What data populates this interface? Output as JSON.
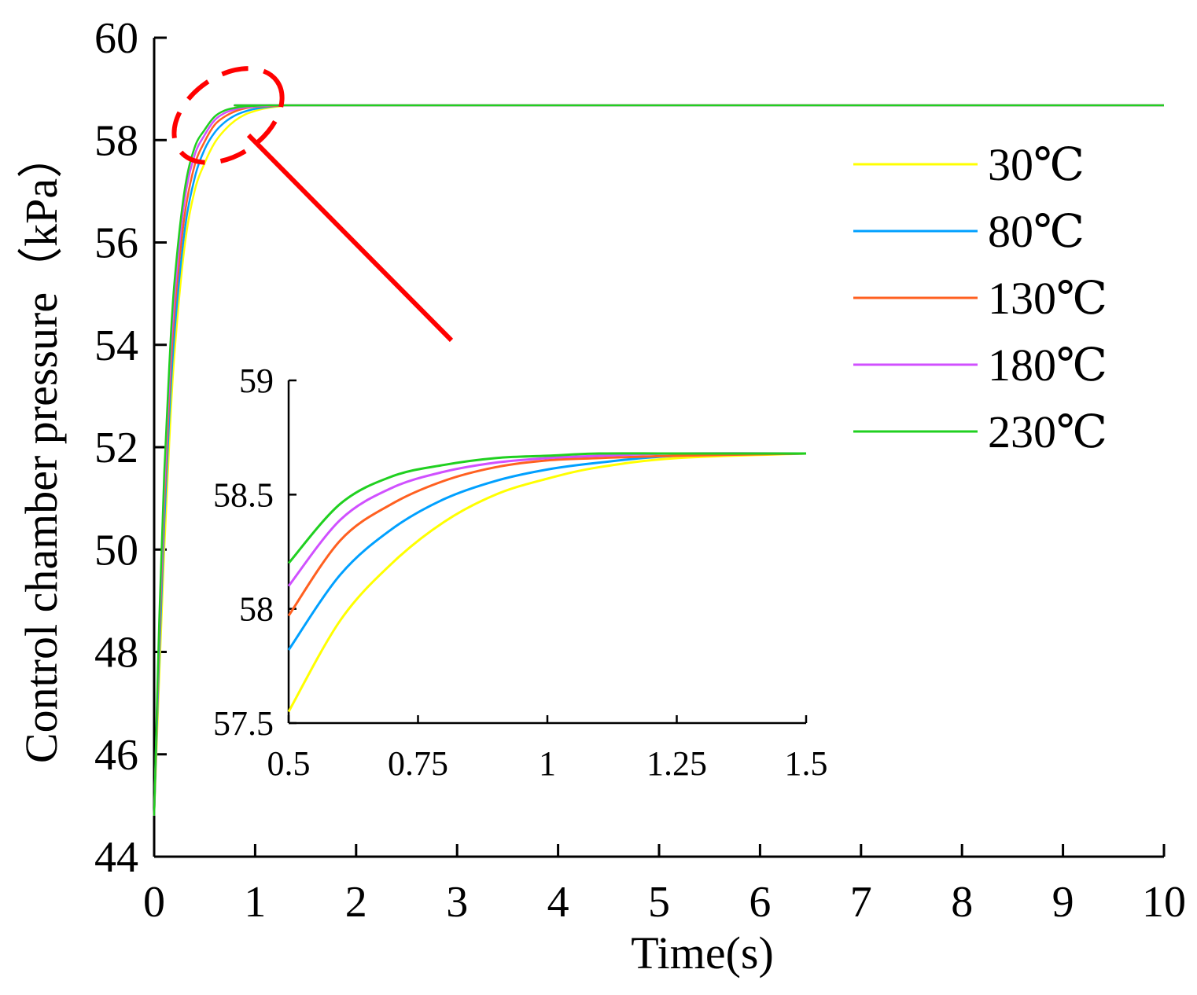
{
  "chart_data": {
    "type": "line",
    "title": "",
    "xlabel": "Time(s)",
    "ylabel": "Control chamber pressure（kPa）",
    "xlim": [
      0,
      10
    ],
    "ylim": [
      44,
      60
    ],
    "xticks": [
      "0",
      "1",
      "2",
      "3",
      "4",
      "5",
      "6",
      "7",
      "8",
      "9",
      "10"
    ],
    "yticks": [
      "44",
      "46",
      "48",
      "50",
      "52",
      "54",
      "56",
      "58",
      "60"
    ],
    "legend_position": "top-right",
    "steady_state": 58.68,
    "series": [
      {
        "name": "30℃",
        "color": "#ffff00",
        "points": [
          [
            0,
            44.8
          ],
          [
            0.05,
            47.5
          ],
          [
            0.1,
            50.0
          ],
          [
            0.15,
            52.1
          ],
          [
            0.2,
            53.8
          ],
          [
            0.3,
            55.9
          ],
          [
            0.4,
            57.0
          ],
          [
            0.5,
            57.55
          ],
          [
            0.6,
            57.95
          ],
          [
            0.7,
            58.2
          ],
          [
            0.8,
            58.38
          ],
          [
            0.9,
            58.5
          ],
          [
            1.0,
            58.57
          ],
          [
            1.1,
            58.62
          ],
          [
            1.25,
            58.66
          ],
          [
            1.5,
            58.68
          ],
          [
            10,
            58.68
          ]
        ]
      },
      {
        "name": "80℃",
        "color": "#00a0ff",
        "points": [
          [
            0,
            44.8
          ],
          [
            0.05,
            47.9
          ],
          [
            0.1,
            50.5
          ],
          [
            0.15,
            52.6
          ],
          [
            0.2,
            54.2
          ],
          [
            0.3,
            56.2
          ],
          [
            0.4,
            57.25
          ],
          [
            0.5,
            57.82
          ],
          [
            0.6,
            58.15
          ],
          [
            0.7,
            58.35
          ],
          [
            0.8,
            58.48
          ],
          [
            0.9,
            58.56
          ],
          [
            1.0,
            58.61
          ],
          [
            1.1,
            58.64
          ],
          [
            1.25,
            58.67
          ],
          [
            1.5,
            58.68
          ],
          [
            10,
            58.68
          ]
        ]
      },
      {
        "name": "130℃",
        "color": "#ff6020",
        "points": [
          [
            0,
            44.8
          ],
          [
            0.05,
            48.2
          ],
          [
            0.1,
            50.9
          ],
          [
            0.15,
            53.0
          ],
          [
            0.2,
            54.6
          ],
          [
            0.3,
            56.5
          ],
          [
            0.4,
            57.5
          ],
          [
            0.5,
            57.97
          ],
          [
            0.6,
            58.3
          ],
          [
            0.7,
            58.46
          ],
          [
            0.8,
            58.56
          ],
          [
            0.9,
            58.62
          ],
          [
            1.0,
            58.65
          ],
          [
            1.1,
            58.66
          ],
          [
            1.25,
            58.67
          ],
          [
            1.5,
            58.68
          ],
          [
            10,
            58.68
          ]
        ]
      },
      {
        "name": "180℃",
        "color": "#d050ff",
        "points": [
          [
            0,
            44.8
          ],
          [
            0.05,
            48.4
          ],
          [
            0.1,
            51.2
          ],
          [
            0.15,
            53.3
          ],
          [
            0.2,
            54.9
          ],
          [
            0.3,
            56.8
          ],
          [
            0.4,
            57.7
          ],
          [
            0.5,
            58.1
          ],
          [
            0.6,
            58.39
          ],
          [
            0.7,
            58.53
          ],
          [
            0.8,
            58.6
          ],
          [
            0.9,
            58.64
          ],
          [
            1.0,
            58.66
          ],
          [
            1.1,
            58.67
          ],
          [
            1.25,
            58.68
          ],
          [
            1.5,
            58.68
          ],
          [
            10,
            58.68
          ]
        ]
      },
      {
        "name": "230℃",
        "color": "#20d020",
        "points": [
          [
            0,
            44.8
          ],
          [
            0.05,
            48.6
          ],
          [
            0.1,
            51.5
          ],
          [
            0.15,
            53.6
          ],
          [
            0.2,
            55.2
          ],
          [
            0.3,
            57.0
          ],
          [
            0.4,
            57.85
          ],
          [
            0.5,
            58.2
          ],
          [
            0.6,
            58.46
          ],
          [
            0.7,
            58.58
          ],
          [
            0.8,
            58.63
          ],
          [
            0.9,
            58.66
          ],
          [
            1.0,
            58.67
          ],
          [
            1.1,
            58.68
          ],
          [
            1.25,
            58.68
          ],
          [
            1.5,
            58.68
          ],
          [
            10,
            58.68
          ]
        ]
      }
    ],
    "inset": {
      "xlim": [
        0.5,
        1.5
      ],
      "ylim": [
        57.5,
        59
      ],
      "xticks": [
        "0.5",
        "0.75",
        "1",
        "1.25",
        "1.5"
      ],
      "yticks": [
        "57.5",
        "58",
        "58.5",
        "59"
      ]
    },
    "annotation": {
      "type": "zoom-ellipse",
      "color": "#ff0000",
      "x_range": [
        0.25,
        1.25
      ],
      "y_range": [
        57.5,
        59.4
      ]
    }
  }
}
